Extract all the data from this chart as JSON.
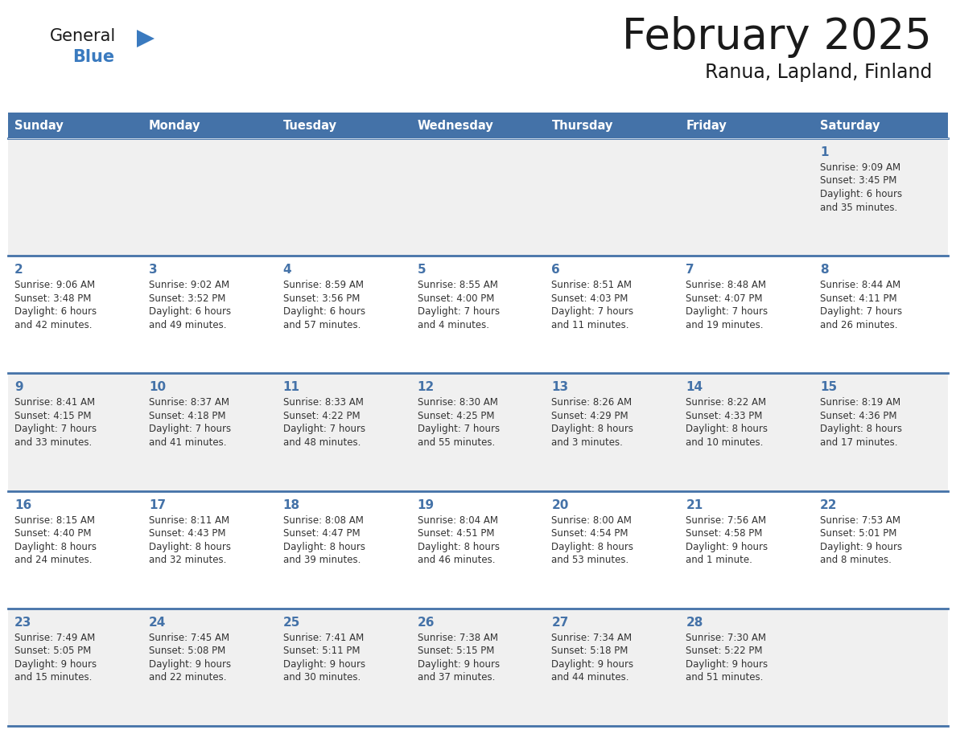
{
  "title": "February 2025",
  "subtitle": "Ranua, Lapland, Finland",
  "days_of_week": [
    "Sunday",
    "Monday",
    "Tuesday",
    "Wednesday",
    "Thursday",
    "Friday",
    "Saturday"
  ],
  "header_bg": "#4472a8",
  "header_text_color": "#ffffff",
  "cell_bg_odd": "#f0f0f0",
  "cell_bg_even": "#ffffff",
  "cell_border_color": "#4472a8",
  "day_num_color": "#4472a8",
  "text_color": "#333333",
  "title_color": "#1a1a1a",
  "logo_general_color": "#1a1a1a",
  "logo_blue_color": "#3a7abf",
  "calendar_data": [
    [
      null,
      null,
      null,
      null,
      null,
      null,
      {
        "day": 1,
        "sunrise": "9:09 AM",
        "sunset": "3:45 PM",
        "daylight": "6 hours\nand 35 minutes."
      }
    ],
    [
      {
        "day": 2,
        "sunrise": "9:06 AM",
        "sunset": "3:48 PM",
        "daylight": "6 hours\nand 42 minutes."
      },
      {
        "day": 3,
        "sunrise": "9:02 AM",
        "sunset": "3:52 PM",
        "daylight": "6 hours\nand 49 minutes."
      },
      {
        "day": 4,
        "sunrise": "8:59 AM",
        "sunset": "3:56 PM",
        "daylight": "6 hours\nand 57 minutes."
      },
      {
        "day": 5,
        "sunrise": "8:55 AM",
        "sunset": "4:00 PM",
        "daylight": "7 hours\nand 4 minutes."
      },
      {
        "day": 6,
        "sunrise": "8:51 AM",
        "sunset": "4:03 PM",
        "daylight": "7 hours\nand 11 minutes."
      },
      {
        "day": 7,
        "sunrise": "8:48 AM",
        "sunset": "4:07 PM",
        "daylight": "7 hours\nand 19 minutes."
      },
      {
        "day": 8,
        "sunrise": "8:44 AM",
        "sunset": "4:11 PM",
        "daylight": "7 hours\nand 26 minutes."
      }
    ],
    [
      {
        "day": 9,
        "sunrise": "8:41 AM",
        "sunset": "4:15 PM",
        "daylight": "7 hours\nand 33 minutes."
      },
      {
        "day": 10,
        "sunrise": "8:37 AM",
        "sunset": "4:18 PM",
        "daylight": "7 hours\nand 41 minutes."
      },
      {
        "day": 11,
        "sunrise": "8:33 AM",
        "sunset": "4:22 PM",
        "daylight": "7 hours\nand 48 minutes."
      },
      {
        "day": 12,
        "sunrise": "8:30 AM",
        "sunset": "4:25 PM",
        "daylight": "7 hours\nand 55 minutes."
      },
      {
        "day": 13,
        "sunrise": "8:26 AM",
        "sunset": "4:29 PM",
        "daylight": "8 hours\nand 3 minutes."
      },
      {
        "day": 14,
        "sunrise": "8:22 AM",
        "sunset": "4:33 PM",
        "daylight": "8 hours\nand 10 minutes."
      },
      {
        "day": 15,
        "sunrise": "8:19 AM",
        "sunset": "4:36 PM",
        "daylight": "8 hours\nand 17 minutes."
      }
    ],
    [
      {
        "day": 16,
        "sunrise": "8:15 AM",
        "sunset": "4:40 PM",
        "daylight": "8 hours\nand 24 minutes."
      },
      {
        "day": 17,
        "sunrise": "8:11 AM",
        "sunset": "4:43 PM",
        "daylight": "8 hours\nand 32 minutes."
      },
      {
        "day": 18,
        "sunrise": "8:08 AM",
        "sunset": "4:47 PM",
        "daylight": "8 hours\nand 39 minutes."
      },
      {
        "day": 19,
        "sunrise": "8:04 AM",
        "sunset": "4:51 PM",
        "daylight": "8 hours\nand 46 minutes."
      },
      {
        "day": 20,
        "sunrise": "8:00 AM",
        "sunset": "4:54 PM",
        "daylight": "8 hours\nand 53 minutes."
      },
      {
        "day": 21,
        "sunrise": "7:56 AM",
        "sunset": "4:58 PM",
        "daylight": "9 hours\nand 1 minute."
      },
      {
        "day": 22,
        "sunrise": "7:53 AM",
        "sunset": "5:01 PM",
        "daylight": "9 hours\nand 8 minutes."
      }
    ],
    [
      {
        "day": 23,
        "sunrise": "7:49 AM",
        "sunset": "5:05 PM",
        "daylight": "9 hours\nand 15 minutes."
      },
      {
        "day": 24,
        "sunrise": "7:45 AM",
        "sunset": "5:08 PM",
        "daylight": "9 hours\nand 22 minutes."
      },
      {
        "day": 25,
        "sunrise": "7:41 AM",
        "sunset": "5:11 PM",
        "daylight": "9 hours\nand 30 minutes."
      },
      {
        "day": 26,
        "sunrise": "7:38 AM",
        "sunset": "5:15 PM",
        "daylight": "9 hours\nand 37 minutes."
      },
      {
        "day": 27,
        "sunrise": "7:34 AM",
        "sunset": "5:18 PM",
        "daylight": "9 hours\nand 44 minutes."
      },
      {
        "day": 28,
        "sunrise": "7:30 AM",
        "sunset": "5:22 PM",
        "daylight": "9 hours\nand 51 minutes."
      },
      null
    ]
  ]
}
